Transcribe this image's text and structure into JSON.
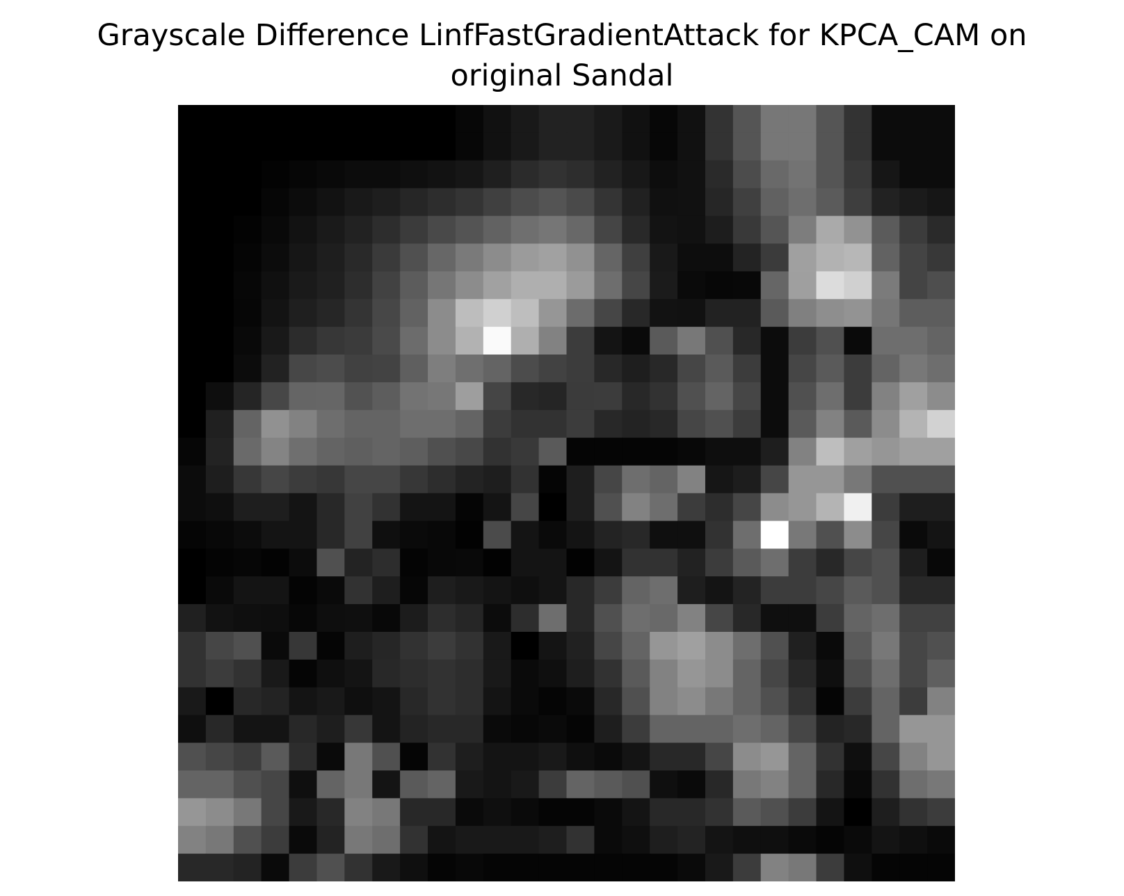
{
  "chart_data": {
    "type": "heatmap",
    "title_lines": [
      "Grayscale Difference LinfFastGradientAttack for KPCA_CAM on",
      "original Sandal"
    ],
    "colormap": "gray",
    "axes_visible": false,
    "rows": 28,
    "cols": 28,
    "values": [
      [
        0,
        0,
        0,
        0,
        0,
        0,
        0,
        0,
        0,
        0,
        7,
        17,
        25,
        34,
        34,
        26,
        17,
        7,
        17,
        51,
        85,
        119,
        119,
        85,
        51,
        12,
        12,
        12
      ],
      [
        0,
        0,
        0,
        0,
        0,
        0,
        0,
        0,
        0,
        0,
        7,
        17,
        25,
        34,
        34,
        26,
        17,
        7,
        17,
        51,
        85,
        119,
        119,
        85,
        51,
        12,
        12,
        12
      ],
      [
        0,
        0,
        0,
        3,
        6,
        9,
        12,
        12,
        15,
        18,
        22,
        31,
        43,
        50,
        45,
        34,
        24,
        13,
        17,
        42,
        76,
        105,
        115,
        85,
        57,
        22,
        12,
        12
      ],
      [
        0,
        0,
        0,
        6,
        12,
        18,
        25,
        30,
        38,
        45,
        52,
        64,
        76,
        84,
        74,
        52,
        33,
        16,
        17,
        38,
        64,
        97,
        110,
        91,
        62,
        34,
        27,
        22
      ],
      [
        0,
        0,
        3,
        9,
        18,
        26,
        34,
        45,
        59,
        73,
        84,
        98,
        111,
        118,
        104,
        69,
        41,
        19,
        17,
        29,
        57,
        85,
        125,
        170,
        146,
        91,
        60,
        42
      ],
      [
        0,
        0,
        5,
        12,
        22,
        30,
        41,
        58,
        80,
        103,
        122,
        140,
        155,
        161,
        145,
        101,
        63,
        25,
        13,
        13,
        35,
        59,
        160,
        178,
        183,
        98,
        68,
        56
      ],
      [
        0,
        0,
        7,
        16,
        26,
        32,
        45,
        66,
        92,
        118,
        140,
        161,
        175,
        175,
        155,
        110,
        70,
        27,
        10,
        7,
        8,
        102,
        159,
        220,
        208,
        123,
        68,
        78
      ],
      [
        0,
        0,
        6,
        19,
        31,
        38,
        52,
        71,
        98,
        140,
        189,
        208,
        190,
        150,
        108,
        70,
        40,
        18,
        17,
        34,
        34,
        90,
        128,
        142,
        147,
        118,
        93,
        93
      ],
      [
        0,
        0,
        9,
        25,
        44,
        55,
        59,
        74,
        108,
        140,
        178,
        250,
        175,
        130,
        60,
        20,
        10,
        90,
        120,
        80,
        40,
        12,
        60,
        80,
        10,
        110,
        110,
        100
      ],
      [
        0,
        0,
        12,
        34,
        71,
        76,
        65,
        67,
        95,
        126,
        111,
        100,
        76,
        66,
        60,
        40,
        30,
        40,
        70,
        90,
        60,
        12,
        70,
        90,
        60,
        100,
        120,
        110
      ],
      [
        0,
        14,
        37,
        71,
        101,
        102,
        82,
        93,
        115,
        119,
        158,
        69,
        40,
        37,
        59,
        60,
        40,
        50,
        80,
        100,
        70,
        12,
        80,
        110,
        60,
        130,
        160,
        140
      ],
      [
        0,
        32,
        100,
        145,
        130,
        110,
        100,
        100,
        110,
        110,
        100,
        60,
        50,
        50,
        60,
        40,
        35,
        40,
        70,
        80,
        60,
        12,
        90,
        130,
        90,
        140,
        180,
        210
      ],
      [
        6,
        35,
        106,
        132,
        111,
        100,
        95,
        100,
        94,
        80,
        72,
        50,
        57,
        90,
        5,
        5,
        5,
        5,
        8,
        14,
        14,
        30,
        130,
        190,
        160,
        150,
        160,
        160
      ],
      [
        12,
        30,
        55,
        70,
        60,
        55,
        70,
        70,
        55,
        45,
        35,
        30,
        50,
        5,
        30,
        70,
        110,
        100,
        130,
        22,
        29,
        70,
        150,
        150,
        120,
        80,
        80,
        80
      ],
      [
        12,
        15,
        30,
        30,
        20,
        40,
        65,
        50,
        20,
        20,
        5,
        20,
        70,
        0,
        30,
        80,
        130,
        110,
        60,
        45,
        70,
        140,
        150,
        180,
        240,
        60,
        30,
        30
      ],
      [
        5,
        8,
        12,
        20,
        20,
        40,
        65,
        15,
        10,
        8,
        2,
        75,
        20,
        10,
        20,
        35,
        40,
        15,
        15,
        50,
        110,
        255,
        120,
        80,
        140,
        70,
        10,
        20
      ],
      [
        0,
        4,
        6,
        3,
        12,
        80,
        35,
        45,
        4,
        8,
        9,
        2,
        20,
        20,
        2,
        20,
        50,
        50,
        34,
        60,
        90,
        110,
        60,
        40,
        70,
        80,
        30,
        8
      ],
      [
        0,
        10,
        20,
        20,
        4,
        10,
        50,
        30,
        6,
        30,
        25,
        20,
        15,
        20,
        40,
        60,
        100,
        110,
        30,
        20,
        35,
        60,
        60,
        70,
        90,
        80,
        40,
        40
      ],
      [
        32,
        18,
        15,
        14,
        7,
        14,
        15,
        8,
        28,
        45,
        38,
        12,
        45,
        110,
        40,
        80,
        110,
        105,
        130,
        70,
        40,
        15,
        15,
        60,
        100,
        110,
        65,
        65
      ],
      [
        50,
        70,
        80,
        10,
        55,
        5,
        30,
        38,
        50,
        60,
        50,
        25,
        0,
        20,
        33,
        70,
        100,
        150,
        160,
        140,
        110,
        80,
        32,
        10,
        90,
        120,
        70,
        80
      ],
      [
        50,
        60,
        50,
        25,
        5,
        15,
        20,
        40,
        45,
        50,
        45,
        25,
        10,
        15,
        30,
        50,
        90,
        130,
        150,
        140,
        100,
        70,
        40,
        15,
        80,
        110,
        70,
        95
      ],
      [
        25,
        0,
        40,
        35,
        20,
        25,
        15,
        20,
        40,
        50,
        45,
        20,
        10,
        5,
        10,
        40,
        80,
        130,
        140,
        120,
        100,
        80,
        50,
        5,
        60,
        100,
        60,
        130
      ],
      [
        15,
        40,
        20,
        20,
        40,
        30,
        55,
        20,
        35,
        40,
        40,
        10,
        7,
        10,
        5,
        30,
        60,
        100,
        100,
        100,
        110,
        100,
        70,
        35,
        40,
        100,
        150,
        150
      ],
      [
        80,
        70,
        60,
        90,
        45,
        10,
        120,
        80,
        5,
        50,
        30,
        20,
        20,
        25,
        15,
        10,
        20,
        40,
        40,
        70,
        140,
        150,
        100,
        50,
        15,
        70,
        130,
        150
      ],
      [
        100,
        100,
        80,
        70,
        15,
        100,
        120,
        20,
        90,
        100,
        25,
        20,
        25,
        60,
        100,
        90,
        80,
        15,
        10,
        40,
        120,
        130,
        100,
        40,
        10,
        50,
        110,
        120
      ],
      [
        150,
        140,
        120,
        70,
        25,
        40,
        130,
        120,
        40,
        40,
        10,
        15,
        10,
        5,
        5,
        10,
        20,
        40,
        40,
        50,
        90,
        80,
        60,
        20,
        0,
        30,
        50,
        60
      ],
      [
        130,
        120,
        80,
        60,
        10,
        35,
        120,
        110,
        50,
        20,
        25,
        25,
        25,
        30,
        50,
        10,
        15,
        30,
        35,
        20,
        15,
        15,
        10,
        5,
        10,
        20,
        15,
        10
      ],
      [
        40,
        40,
        35,
        10,
        60,
        80,
        50,
        25,
        15,
        5,
        8,
        5,
        5,
        5,
        5,
        5,
        5,
        5,
        10,
        25,
        60,
        130,
        120,
        60,
        15,
        5,
        5,
        5
      ]
    ]
  }
}
